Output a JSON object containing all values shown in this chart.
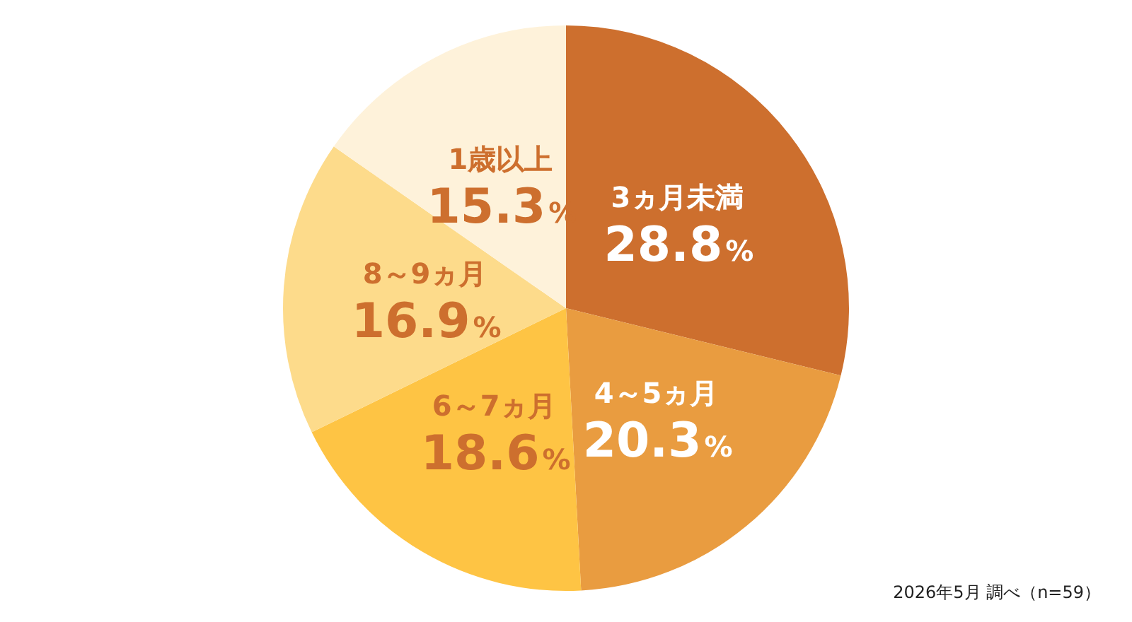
{
  "chart_data": {
    "type": "pie",
    "categories": [
      "3ヵ月未満",
      "4～5ヵ月",
      "6～7ヵ月",
      "8～9ヵ月",
      "1歳以上"
    ],
    "values": [
      28.8,
      20.3,
      18.6,
      16.9,
      15.3
    ],
    "value_labels": [
      "28.8%",
      "20.3%",
      "18.6%",
      "16.9%",
      "15.3%"
    ],
    "colors": [
      "#cd6f2e",
      "#e99c40",
      "#fec444",
      "#fddb8b",
      "#fef2da"
    ],
    "legend": false,
    "annotations": [
      "2026年5月 調べ（n=59）"
    ]
  }
}
